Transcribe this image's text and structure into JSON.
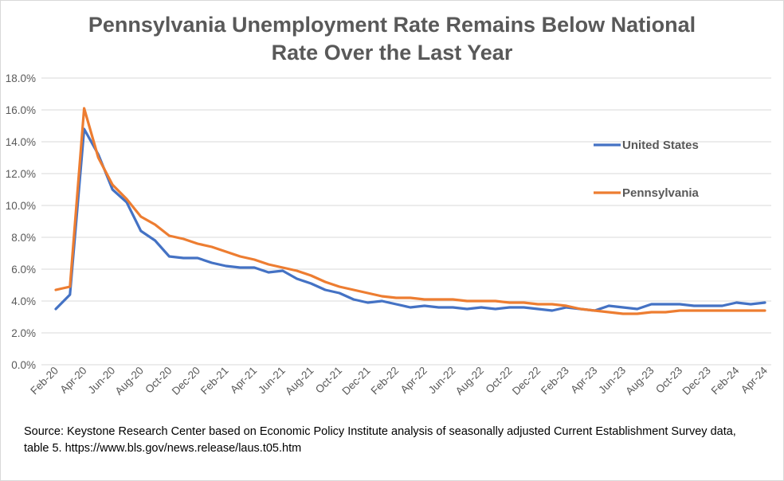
{
  "chart_data": {
    "type": "line",
    "title_lines": [
      "Pennsylvania Unemployment Rate Remains Below National",
      "Rate Over the Last Year"
    ],
    "xlabel": "",
    "ylabel": "",
    "ylim": [
      0,
      18
    ],
    "yticks": [
      "0.0%",
      "2.0%",
      "4.0%",
      "6.0%",
      "8.0%",
      "10.0%",
      "12.0%",
      "14.0%",
      "16.0%",
      "18.0%"
    ],
    "grid": true,
    "legend_placement": "right",
    "xtick_labels": [
      "Feb-20",
      "Apr-20",
      "Jun-20",
      "Aug-20",
      "Oct-20",
      "Dec-20",
      "Feb-21",
      "Apr-21",
      "Jun-21",
      "Aug-21",
      "Oct-21",
      "Dec-21",
      "Feb-22",
      "Apr-22",
      "Jun-22",
      "Aug-22",
      "Oct-22",
      "Dec-22",
      "Feb-23",
      "Apr-23",
      "Jun-23",
      "Aug-23",
      "Oct-23",
      "Dec-23",
      "Feb-24",
      "Apr-24"
    ],
    "x": [
      "Feb-20",
      "Mar-20",
      "Apr-20",
      "May-20",
      "Jun-20",
      "Jul-20",
      "Aug-20",
      "Sep-20",
      "Oct-20",
      "Nov-20",
      "Dec-20",
      "Jan-21",
      "Feb-21",
      "Mar-21",
      "Apr-21",
      "May-21",
      "Jun-21",
      "Jul-21",
      "Aug-21",
      "Sep-21",
      "Oct-21",
      "Nov-21",
      "Dec-21",
      "Jan-22",
      "Feb-22",
      "Mar-22",
      "Apr-22",
      "May-22",
      "Jun-22",
      "Jul-22",
      "Aug-22",
      "Sep-22",
      "Oct-22",
      "Nov-22",
      "Dec-22",
      "Jan-23",
      "Feb-23",
      "Mar-23",
      "Apr-23",
      "May-23",
      "Jun-23",
      "Jul-23",
      "Aug-23",
      "Sep-23",
      "Oct-23",
      "Nov-23",
      "Dec-23",
      "Jan-24",
      "Feb-24",
      "Mar-24",
      "Apr-24"
    ],
    "series": [
      {
        "name": "United States",
        "color": "#4472c4",
        "values": [
          3.5,
          4.4,
          14.8,
          13.2,
          11.0,
          10.2,
          8.4,
          7.8,
          6.8,
          6.7,
          6.7,
          6.4,
          6.2,
          6.1,
          6.1,
          5.8,
          5.9,
          5.4,
          5.1,
          4.7,
          4.5,
          4.1,
          3.9,
          4.0,
          3.8,
          3.6,
          3.7,
          3.6,
          3.6,
          3.5,
          3.6,
          3.5,
          3.6,
          3.6,
          3.5,
          3.4,
          3.6,
          3.5,
          3.4,
          3.7,
          3.6,
          3.5,
          3.8,
          3.8,
          3.8,
          3.7,
          3.7,
          3.7,
          3.9,
          3.8,
          3.9
        ]
      },
      {
        "name": "Pennsylvania",
        "color": "#ed7d31",
        "values": [
          4.7,
          4.9,
          16.1,
          13.0,
          11.3,
          10.4,
          9.3,
          8.8,
          8.1,
          7.9,
          7.6,
          7.4,
          7.1,
          6.8,
          6.6,
          6.3,
          6.1,
          5.9,
          5.6,
          5.2,
          4.9,
          4.7,
          4.5,
          4.3,
          4.2,
          4.2,
          4.1,
          4.1,
          4.1,
          4.0,
          4.0,
          4.0,
          3.9,
          3.9,
          3.8,
          3.8,
          3.7,
          3.5,
          3.4,
          3.3,
          3.2,
          3.2,
          3.3,
          3.3,
          3.4,
          3.4,
          3.4,
          3.4,
          3.4,
          3.4,
          3.4
        ]
      }
    ]
  },
  "source_lines": [
    "Source: Keystone Research Center  based on Economic Policy Institute analysis of seasonally adjusted Current Establishment Survey data,",
    "table 5. https://www.bls.gov/news.release/laus.t05.htm"
  ]
}
